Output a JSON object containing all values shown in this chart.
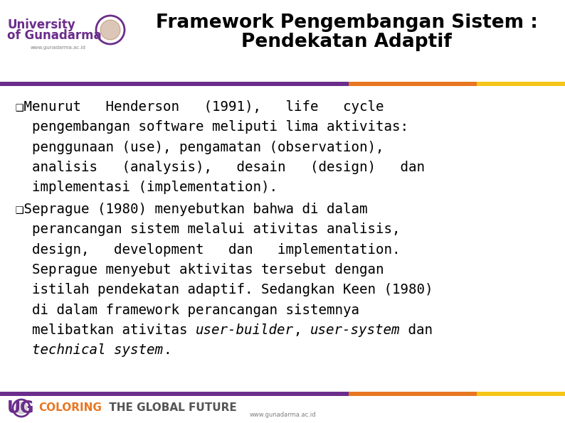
{
  "title_line1": "Framework Pengembangan Sistem :",
  "title_line2": "Pendekatan Adaptif",
  "bg_color": "#ffffff",
  "bar_purple": "#6B2D8B",
  "bar_orange": "#E87722",
  "bar_yellow": "#F5C518",
  "body_color": "#000000",
  "bullet1_lines": [
    "❑Menurut   Henderson   (1991),   life   cycle",
    "  pengembangan software meliputi lima aktivitas:",
    "  penggunaan (use), pengamatan (observation),",
    "  analisis   (analysis),   desain   (design)   dan",
    "  implementasi (implementation)."
  ],
  "bullet2_lines": [
    "❑Seprague (1980) menyebutkan bahwa di dalam",
    "  perancangan sistem melalui ativitas analisis,",
    "  design,   development   dan   implementation.",
    "  Seprague menyebut aktivitas tersebut dengan",
    "  istilah pendekatan adaptif. Sedangkan Keen (1980)",
    "  di dalam framework perancangan sistemnya",
    "  melibatkan ativitas "
  ],
  "bullet2_italic1": "user-builder",
  "bullet2_comma": ", ",
  "bullet2_italic2": "user-system",
  "bullet2_dan": " dan",
  "bullet2_italic3": "technical system",
  "bullet2_dot": ".",
  "footer_url": "www.gunadarma.ac.id",
  "univ_line1": "University",
  "univ_line2": "of Gunadarma",
  "univ_url": "www.gunadarma.ac.id",
  "title_fontsize": 19,
  "body_fontsize": 13.8,
  "footer_fontsize": 12
}
